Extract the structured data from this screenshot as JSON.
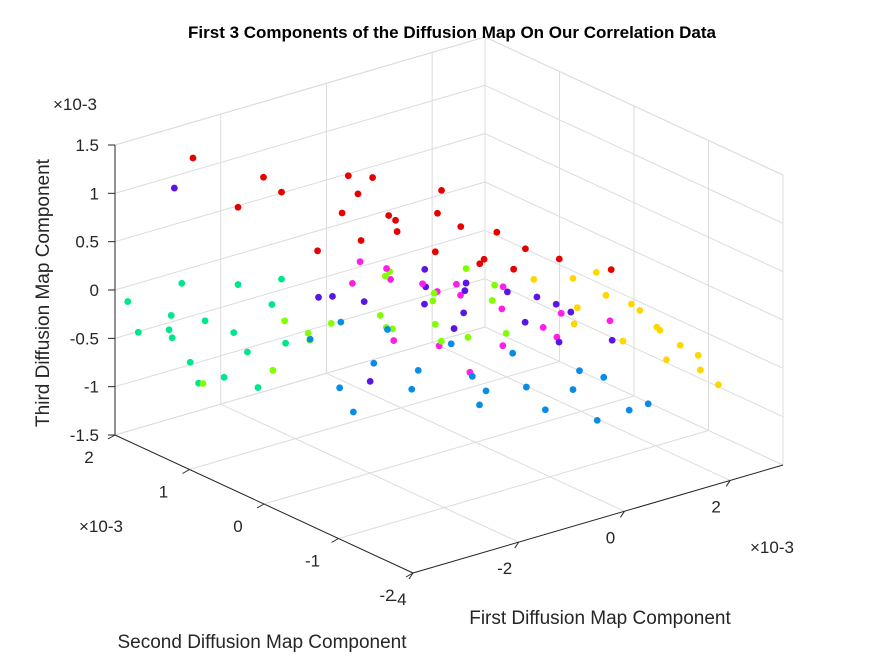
{
  "chart_data": {
    "type": "scatter3d",
    "title": "First 3 Components of the Diffusion Map On Our Correlation Data",
    "xlabel": "First Diffusion Map Component",
    "ylabel": "Second Diffusion Map Component",
    "zlabel": "Third Diffusion Map Component",
    "x_exponent": "×10-3",
    "y_exponent": "×10-3",
    "z_exponent": "×10-3",
    "xlim": [
      -4,
      3
    ],
    "ylim": [
      -2,
      2
    ],
    "zlim": [
      -1.5,
      1.5
    ],
    "x_ticks": [
      "-4",
      "-2",
      "0",
      "2"
    ],
    "y_ticks": [
      "-2",
      "-1",
      "0",
      "1",
      "2"
    ],
    "z_ticks": [
      "-1.5",
      "-1",
      "-0.5",
      "0",
      "0.5",
      "1",
      "1.5"
    ],
    "grid": true,
    "units_note": "values shown in units of 10^-3",
    "series": [
      {
        "color": "#e60000",
        "points": [
          [
            -3.3,
            1.45,
            1.45
          ],
          [
            -2.6,
            1.0,
            1.3
          ],
          [
            -1.7,
            0.5,
            1.35
          ],
          [
            -2.1,
            0.3,
            1.1
          ],
          [
            -1.5,
            0.1,
            1.05
          ],
          [
            -1.3,
            0.15,
            0.95
          ],
          [
            -1.8,
            0.3,
            1.25
          ],
          [
            -1.0,
            -0.2,
            1.1
          ],
          [
            -0.7,
            -0.3,
            0.95
          ],
          [
            -0.3,
            -0.5,
            0.9
          ],
          [
            -2.4,
            0.9,
            1.15
          ],
          [
            -2.8,
            1.2,
            0.95
          ],
          [
            -1.2,
            0.2,
            0.8
          ],
          [
            -0.9,
            -0.1,
            0.65
          ],
          [
            -0.4,
            -0.4,
            0.6
          ],
          [
            0.1,
            -0.6,
            0.7
          ],
          [
            0.6,
            -0.7,
            0.55
          ],
          [
            1.3,
            -0.9,
            0.4
          ],
          [
            -1.6,
            0.4,
            0.7
          ],
          [
            -2.0,
            0.7,
            0.55
          ],
          [
            -0.2,
            -0.2,
            0.45
          ],
          [
            0.3,
            -0.3,
            0.35
          ],
          [
            -1.1,
            0.6,
            1.2
          ],
          [
            -0.5,
            0.1,
            1.15
          ]
        ]
      },
      {
        "color": "#ffd700",
        "points": [
          [
            1.4,
            -1.1,
            0.1
          ],
          [
            1.6,
            -1.3,
            -0.1
          ],
          [
            1.9,
            -1.4,
            -0.3
          ],
          [
            2.0,
            -1.6,
            -0.5
          ],
          [
            1.2,
            -0.9,
            0.15
          ],
          [
            1.0,
            -0.6,
            0.25
          ],
          [
            1.7,
            -1.0,
            -0.05
          ],
          [
            2.2,
            -1.7,
            -0.65
          ],
          [
            0.8,
            -0.8,
            0.05
          ],
          [
            1.5,
            -1.5,
            -0.35
          ],
          [
            0.6,
            -0.9,
            -0.05
          ],
          [
            1.1,
            -1.2,
            -0.2
          ],
          [
            1.8,
            -1.2,
            -0.2
          ],
          [
            2.1,
            -1.5,
            -0.4
          ],
          [
            0.4,
            -0.5,
            0.3
          ],
          [
            1.3,
            -0.7,
            0.3
          ]
        ]
      },
      {
        "color": "#7fff00",
        "points": [
          [
            -2.6,
            0.4,
            -0.1
          ],
          [
            -1.8,
            0.0,
            0.1
          ],
          [
            -1.2,
            0.3,
            0.35
          ],
          [
            -0.9,
            -0.1,
            -0.1
          ],
          [
            -0.5,
            0.2,
            0.05
          ],
          [
            -0.1,
            0.5,
            -0.2
          ],
          [
            0.3,
            -0.2,
            -0.35
          ],
          [
            -1.6,
            0.8,
            -0.3
          ],
          [
            -2.2,
            1.0,
            -0.25
          ],
          [
            -0.7,
            0.7,
            -0.45
          ],
          [
            -0.3,
            0.9,
            -0.6
          ],
          [
            0.2,
            0.6,
            -0.7
          ],
          [
            0.6,
            0.2,
            -0.2
          ],
          [
            -1.3,
            1.3,
            -0.7
          ],
          [
            -2.9,
            1.6,
            -1.0
          ],
          [
            -0.2,
            -0.4,
            0.3
          ],
          [
            -1.0,
            0.5,
            0.2
          ],
          [
            -2.0,
            1.3,
            -0.9
          ],
          [
            -0.6,
            -0.3,
            0.5
          ],
          [
            0.0,
            0.1,
            -0.45
          ]
        ]
      },
      {
        "color": "#00e68a",
        "points": [
          [
            -3.9,
            1.9,
            -0.1
          ],
          [
            -3.5,
            1.6,
            -0.2
          ],
          [
            -3.4,
            1.7,
            -0.4
          ],
          [
            -3.0,
            1.5,
            -0.3
          ],
          [
            -2.8,
            1.2,
            0.15
          ],
          [
            -3.2,
            1.8,
            -0.55
          ],
          [
            -2.6,
            1.4,
            -0.45
          ],
          [
            -3.7,
            1.9,
            -0.45
          ],
          [
            -2.3,
            1.1,
            -0.1
          ],
          [
            -2.5,
            1.6,
            -1.0
          ],
          [
            -2.0,
            1.5,
            -1.15
          ],
          [
            -2.7,
            1.8,
            -1.1
          ],
          [
            -3.3,
            1.6,
            0.1
          ],
          [
            -2.4,
            0.9,
            0.25
          ],
          [
            -1.9,
            1.2,
            -0.6
          ],
          [
            -2.2,
            1.5,
            -0.75
          ],
          [
            -3.0,
            1.7,
            -0.8
          ]
        ]
      },
      {
        "color": "#0a8be6",
        "points": [
          [
            -1.5,
            0.3,
            -0.55
          ],
          [
            -0.8,
            0.2,
            -0.7
          ],
          [
            -0.2,
            -0.1,
            -0.75
          ],
          [
            0.4,
            -0.4,
            -0.85
          ],
          [
            1.0,
            -0.6,
            -0.9
          ],
          [
            -1.3,
            0.9,
            -1.05
          ],
          [
            -0.5,
            0.5,
            -1.05
          ],
          [
            0.2,
            0.0,
            -1.0
          ],
          [
            0.9,
            -0.3,
            -1.2
          ],
          [
            1.6,
            -0.5,
            -1.35
          ],
          [
            -2.0,
            0.8,
            -0.4
          ],
          [
            -1.1,
            0.4,
            -0.3
          ],
          [
            -0.6,
            -0.1,
            -0.35
          ],
          [
            0.0,
            -0.5,
            -0.4
          ],
          [
            0.7,
            -0.9,
            -0.55
          ],
          [
            1.3,
            -0.8,
            -0.75
          ],
          [
            1.5,
            -1.0,
            -1.05
          ],
          [
            -0.9,
            1.0,
            -1.4
          ],
          [
            0.5,
            0.3,
            -1.3
          ],
          [
            -1.7,
            0.6,
            -0.2
          ],
          [
            2.0,
            -0.9,
            -1.1
          ]
        ]
      },
      {
        "color": "#5a14e6",
        "points": [
          [
            -1.1,
            -0.1,
            0.5
          ],
          [
            -0.6,
            -0.3,
            0.35
          ],
          [
            -0.1,
            -0.5,
            0.25
          ],
          [
            0.4,
            -0.8,
            0.15
          ],
          [
            1.1,
            -0.5,
            -0.15
          ],
          [
            0.8,
            -0.1,
            -0.35
          ],
          [
            0.2,
            0.3,
            -0.3
          ],
          [
            -0.4,
            0.4,
            -0.15
          ],
          [
            -1.4,
            0.5,
            0.0
          ],
          [
            -2.0,
            0.5,
            0.15
          ],
          [
            -0.3,
            1.2,
            -1.25
          ],
          [
            1.6,
            -0.7,
            -0.45
          ],
          [
            -3.3,
            1.7,
            1.05
          ],
          [
            -0.8,
            0.1,
            0.2
          ],
          [
            0.6,
            -0.4,
            0.05
          ],
          [
            1.3,
            -0.2,
            -0.6
          ],
          [
            -1.7,
            0.9,
            -0.05
          ],
          [
            -0.2,
            0.0,
            0.1
          ],
          [
            0.3,
            0.5,
            -0.55
          ]
        ]
      },
      {
        "color": "#ff1ee6",
        "points": [
          [
            -1.9,
            0.2,
            0.6
          ],
          [
            -1.0,
            0.0,
            0.3
          ],
          [
            -0.5,
            -0.1,
            0.25
          ],
          [
            0.0,
            0.2,
            -0.05
          ],
          [
            0.5,
            0.0,
            -0.2
          ],
          [
            1.0,
            -0.2,
            -0.4
          ],
          [
            1.4,
            -0.1,
            -0.6
          ],
          [
            0.3,
            0.7,
            -0.8
          ],
          [
            -0.7,
            0.6,
            -0.55
          ],
          [
            -1.4,
            0.2,
            0.45
          ],
          [
            0.8,
            0.2,
            -0.7
          ],
          [
            -0.3,
            0.3,
            0.0
          ],
          [
            1.2,
            -0.3,
            -0.25
          ],
          [
            -1.2,
            0.8,
            0.05
          ],
          [
            0.1,
            -0.3,
            0.2
          ],
          [
            0.6,
            0.5,
            -1.05
          ],
          [
            -0.9,
            0.5,
            0.15
          ],
          [
            1.7,
            -0.6,
            -0.3
          ]
        ]
      }
    ]
  }
}
